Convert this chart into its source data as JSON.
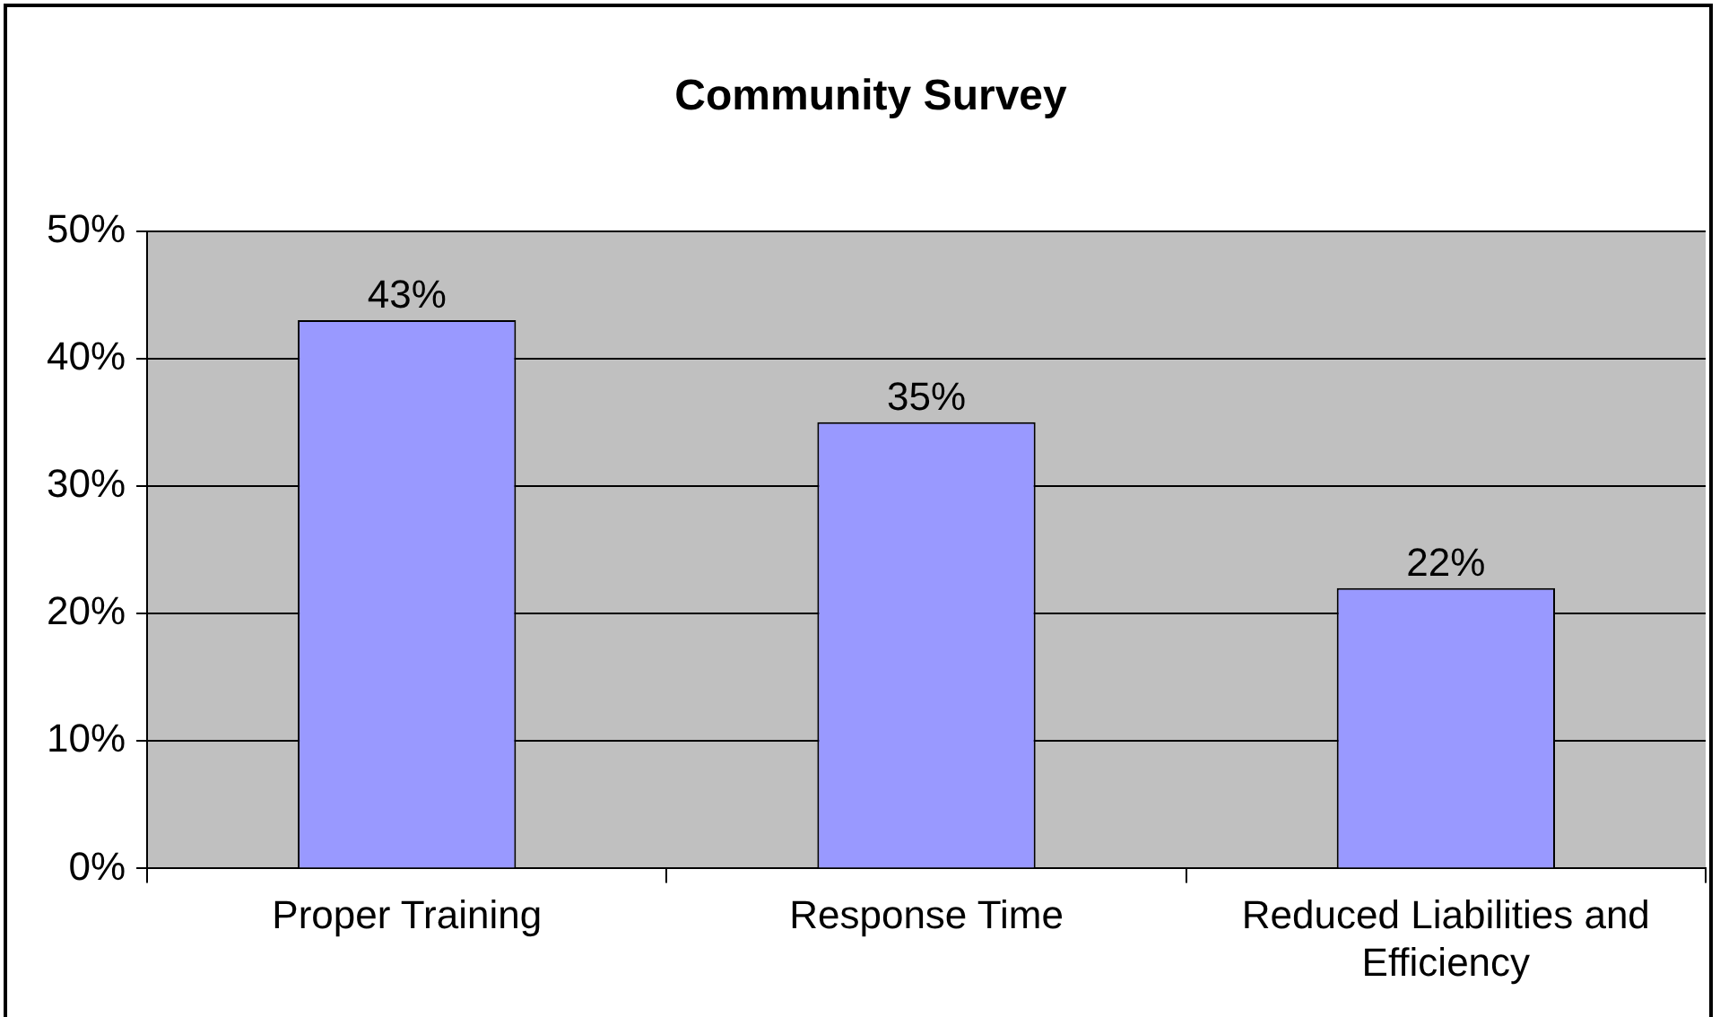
{
  "chart_data": {
    "type": "bar",
    "title": "Community Survey",
    "categories": [
      "Proper Training",
      "Response Time",
      "Reduced Liabilities and Efficiency"
    ],
    "values": [
      43,
      35,
      22
    ],
    "value_labels": [
      "43%",
      "35%",
      "22%"
    ],
    "color": "#9999ff",
    "ylim": [
      0,
      50
    ],
    "yticks": [
      {
        "value": 0,
        "label": "0%"
      },
      {
        "value": 10,
        "label": "10%"
      },
      {
        "value": 20,
        "label": "20%"
      },
      {
        "value": 30,
        "label": "30%"
      },
      {
        "value": 40,
        "label": "40%"
      },
      {
        "value": 50,
        "label": "50%"
      }
    ],
    "grid": "y",
    "legend": false
  }
}
